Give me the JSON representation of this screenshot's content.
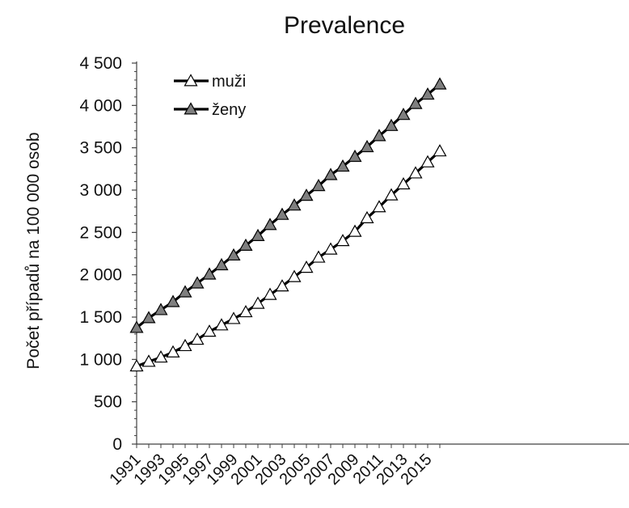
{
  "chart_data": {
    "type": "line",
    "title": "Prevalence",
    "xlabel": "",
    "ylabel": "Počet případů na 100 000 osob",
    "ylim": [
      0,
      4500
    ],
    "yticks": [
      0,
      500,
      1000,
      1500,
      2000,
      2500,
      3000,
      3500,
      4000,
      4500
    ],
    "ytick_labels": [
      "0",
      "500",
      "1 000",
      "1 500",
      "2 000",
      "2 500",
      "3 000",
      "3 500",
      "4 000",
      "4 500"
    ],
    "x": [
      1991,
      1992,
      1993,
      1994,
      1995,
      1996,
      1997,
      1998,
      1999,
      2000,
      2001,
      2002,
      2003,
      2004,
      2005,
      2006,
      2007,
      2008,
      2009,
      2010,
      2011,
      2012,
      2013,
      2014,
      2015,
      2016
    ],
    "xtick_labels": [
      "1991",
      "1993",
      "1995",
      "1997",
      "1999",
      "2001",
      "2003",
      "2005",
      "2007",
      "2009",
      "2011",
      "2013",
      "2015"
    ],
    "grid": false,
    "legend_position": "top-left",
    "series": [
      {
        "name": "muži",
        "marker": "triangle-open",
        "color": "#000000",
        "marker_fill": "#ffffff",
        "values": [
          920,
          975,
          1025,
          1085,
          1160,
          1235,
          1330,
          1405,
          1480,
          1560,
          1660,
          1765,
          1865,
          1975,
          2085,
          2205,
          2300,
          2400,
          2510,
          2670,
          2800,
          2940,
          3070,
          3200,
          3330,
          3460
        ]
      },
      {
        "name": "ženy",
        "marker": "triangle-filled",
        "color": "#000000",
        "marker_fill": "#7f7f7f",
        "values": [
          1375,
          1490,
          1585,
          1680,
          1795,
          1900,
          2005,
          2115,
          2230,
          2345,
          2460,
          2590,
          2710,
          2820,
          2935,
          3050,
          3180,
          3280,
          3395,
          3510,
          3640,
          3760,
          3890,
          4020,
          4130,
          4250
        ]
      }
    ]
  }
}
